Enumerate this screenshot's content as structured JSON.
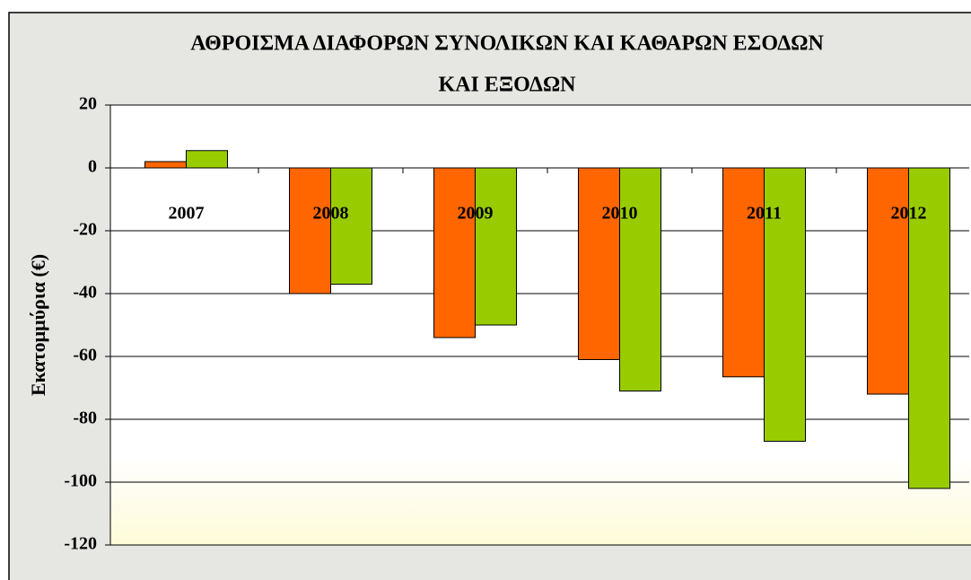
{
  "chart_data": {
    "type": "bar",
    "title": [
      "ΑΘΡΟΙΣΜΑ ΔΙΑΦΟΡΩΝ ΣΥΝΟΛΙΚΩΝ ΚΑΙ ΚΑΘΑΡΩΝ ΕΣΟΔΩΝ",
      "ΚΑΙ ΕΞΟΔΩΝ"
    ],
    "y_label": "Εκατομμύρια (€)",
    "categories": [
      "2007",
      "2008",
      "2009",
      "2010",
      "2011",
      "2012"
    ],
    "series": [
      {
        "color": "#ff6600",
        "values": [
          2,
          -40,
          -54,
          -61,
          -66.5,
          -72
        ]
      },
      {
        "color": "#99cc00",
        "values": [
          5.5,
          -37,
          -50,
          -71,
          -87,
          -102
        ]
      }
    ],
    "ylim": [
      -120,
      20
    ],
    "yticks": [
      -120,
      -100,
      -80,
      -60,
      -40,
      -20,
      0,
      20
    ],
    "grid": true
  }
}
